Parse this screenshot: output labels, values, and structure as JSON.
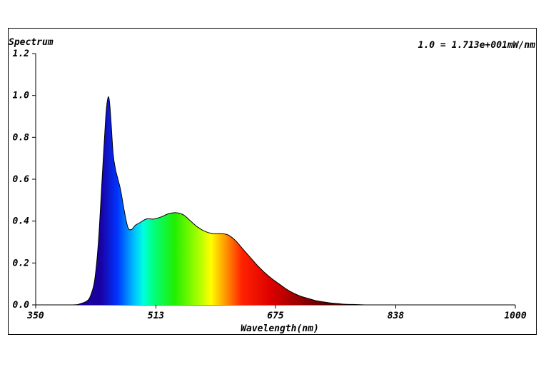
{
  "chart_data": {
    "type": "area",
    "title": "Spectrum",
    "annotation": "1.0 = 1.713e+001mW/nm",
    "xlabel": "Wavelength(nm)",
    "ylabel": "",
    "xlim": [
      350,
      1000
    ],
    "ylim": [
      0.0,
      1.2
    ],
    "x_ticks": [
      "350",
      "513",
      "675",
      "838",
      "1000"
    ],
    "y_ticks": [
      "0.0",
      "0.2",
      "0.4",
      "0.6",
      "0.8",
      "1.0",
      "1.2"
    ],
    "grid": false,
    "series": [
      {
        "x": [
          350,
          400,
          410,
          420,
          425,
          430,
          435,
          440,
          445,
          448,
          450,
          452,
          455,
          458,
          460,
          465,
          470,
          475,
          480,
          485,
          490,
          500,
          510,
          520,
          530,
          540,
          550,
          560,
          570,
          580,
          590,
          600,
          610,
          620,
          630,
          640,
          650,
          660,
          670,
          680,
          690,
          700,
          710,
          720,
          730,
          740,
          750,
          760,
          770,
          780,
          790,
          800,
          820,
          1000
        ],
        "y": [
          0.0,
          0.0,
          0.005,
          0.02,
          0.05,
          0.12,
          0.3,
          0.6,
          0.9,
          0.99,
          0.97,
          0.88,
          0.72,
          0.65,
          0.62,
          0.55,
          0.45,
          0.37,
          0.36,
          0.38,
          0.39,
          0.41,
          0.41,
          0.42,
          0.435,
          0.44,
          0.43,
          0.4,
          0.37,
          0.35,
          0.34,
          0.34,
          0.335,
          0.31,
          0.27,
          0.23,
          0.19,
          0.155,
          0.125,
          0.1,
          0.075,
          0.055,
          0.04,
          0.03,
          0.02,
          0.014,
          0.009,
          0.006,
          0.003,
          0.002,
          0.001,
          0.0,
          0.0,
          0.0
        ]
      }
    ]
  }
}
